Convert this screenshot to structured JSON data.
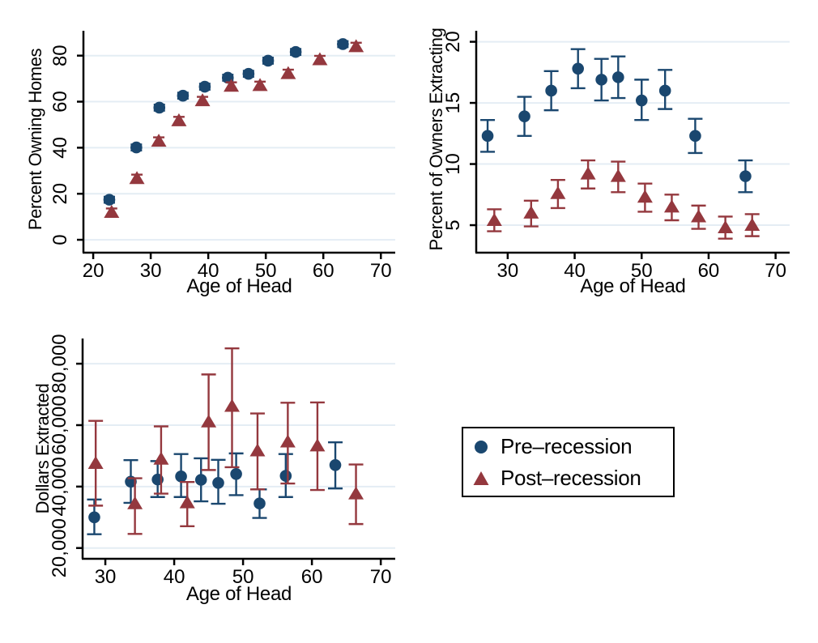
{
  "colors": {
    "pre": "#1a476f",
    "post": "#94383e",
    "grid": "#e4edf4",
    "axis": "#000000",
    "legend_border": "#000000",
    "background": "#ffffff"
  },
  "legend": {
    "items": [
      {
        "label": "Pre–recession",
        "marker": "circle",
        "series": "pre"
      },
      {
        "label": "Post–recession",
        "marker": "triangle",
        "series": "post"
      }
    ]
  },
  "chart_data": [
    {
      "id": "percent-owning-homes",
      "type": "scatter",
      "title": "",
      "xlabel": "Age of Head",
      "ylabel": "Percent Owning Homes",
      "xlim": [
        18.3,
        72.5
      ],
      "ylim": [
        -5.6,
        90.8
      ],
      "xticks": [
        20,
        30,
        40,
        50,
        60,
        70
      ],
      "xtick_labels": [
        "20",
        "30",
        "40",
        "50",
        "60",
        "70"
      ],
      "yticks": [
        0,
        20,
        40,
        60,
        80
      ],
      "ytick_labels": [
        "0",
        "20",
        "40",
        "60",
        "80"
      ],
      "grid": true,
      "point_format": [
        "age",
        "value",
        "ci_low",
        "ci_high"
      ],
      "series": [
        {
          "name": "Pre-recession",
          "marker": "circle",
          "color": "pre",
          "points": [
            [
              22.8,
              17.4,
              16.1,
              18.7
            ],
            [
              27.5,
              40.1,
              38.8,
              41.4
            ],
            [
              31.5,
              57.4,
              56.1,
              58.7
            ],
            [
              35.6,
              62.6,
              61.3,
              63.9
            ],
            [
              39.4,
              66.5,
              65.2,
              67.8
            ],
            [
              43.4,
              70.4,
              69.1,
              71.7
            ],
            [
              47.0,
              72.1,
              70.8,
              73.4
            ],
            [
              50.4,
              77.8,
              76.5,
              79.1
            ],
            [
              55.2,
              81.6,
              80.3,
              82.9
            ],
            [
              63.4,
              85.0,
              83.7,
              86.3
            ]
          ]
        },
        {
          "name": "Post-recession",
          "marker": "triangle",
          "color": "post",
          "points": [
            [
              23.2,
              12.0,
              10.4,
              13.6
            ],
            [
              27.6,
              26.7,
              25.1,
              28.3
            ],
            [
              31.4,
              42.9,
              41.3,
              44.5
            ],
            [
              34.9,
              51.8,
              50.2,
              53.4
            ],
            [
              39.0,
              60.5,
              58.9,
              62.1
            ],
            [
              44.0,
              66.8,
              65.2,
              68.4
            ],
            [
              49.0,
              67.1,
              65.5,
              68.7
            ],
            [
              53.9,
              72.3,
              70.7,
              73.9
            ],
            [
              59.4,
              78.3,
              76.7,
              79.9
            ],
            [
              65.7,
              84.0,
              82.4,
              85.6
            ]
          ]
        }
      ]
    },
    {
      "id": "percent-of-owners-extracting",
      "type": "scatter",
      "title": "",
      "xlabel": "Age of Head",
      "ylabel": "Percent of Owners Extracting",
      "xlim": [
        25.3,
        72.1
      ],
      "ylim": [
        2.75,
        20.9
      ],
      "xticks": [
        30,
        40,
        50,
        60,
        70
      ],
      "xtick_labels": [
        "30",
        "40",
        "50",
        "60",
        "70"
      ],
      "yticks": [
        5,
        10,
        15,
        20
      ],
      "ytick_labels": [
        "5",
        "10",
        "15",
        "20"
      ],
      "grid": true,
      "point_format": [
        "age",
        "value",
        "ci_low",
        "ci_high"
      ],
      "series": [
        {
          "name": "Pre-recession",
          "marker": "circle",
          "color": "pre",
          "points": [
            [
              27.0,
              12.3,
              11.0,
              13.6
            ],
            [
              32.5,
              13.9,
              12.3,
              15.5
            ],
            [
              36.5,
              16.0,
              14.4,
              17.6
            ],
            [
              40.5,
              17.8,
              16.2,
              19.4
            ],
            [
              44.0,
              16.9,
              15.2,
              18.6
            ],
            [
              46.5,
              17.1,
              15.4,
              18.8
            ],
            [
              50.0,
              15.2,
              13.6,
              16.9
            ],
            [
              53.5,
              16.0,
              14.5,
              17.7
            ],
            [
              58.0,
              12.3,
              10.9,
              13.7
            ],
            [
              65.5,
              9.0,
              7.7,
              10.3
            ]
          ]
        },
        {
          "name": "Post-recession",
          "marker": "triangle",
          "color": "post",
          "points": [
            [
              28.0,
              5.4,
              4.5,
              6.3
            ],
            [
              33.5,
              6.0,
              4.9,
              7.0
            ],
            [
              37.5,
              7.6,
              6.4,
              8.7
            ],
            [
              42.0,
              9.2,
              8.0,
              10.3
            ],
            [
              46.5,
              9.0,
              7.7,
              10.2
            ],
            [
              50.5,
              7.3,
              6.1,
              8.4
            ],
            [
              54.5,
              6.5,
              5.4,
              7.5
            ],
            [
              58.5,
              5.7,
              4.7,
              6.6
            ],
            [
              62.5,
              4.8,
              3.9,
              5.7
            ],
            [
              66.5,
              5.0,
              4.1,
              5.9
            ]
          ]
        }
      ]
    },
    {
      "id": "dollars-extracted",
      "type": "scatter",
      "title": "",
      "xlabel": "Age of Head",
      "ylabel": "Dollars Extracted",
      "xlim": [
        26.7,
        72.1
      ],
      "ylim": [
        16500,
        88200
      ],
      "xticks": [
        30,
        40,
        50,
        60,
        70
      ],
      "xtick_labels": [
        "30",
        "40",
        "50",
        "60",
        "70"
      ],
      "yticks": [
        20000,
        40000,
        60000,
        80000
      ],
      "ytick_labels": [
        "20,000",
        "40,000",
        "60,000",
        "80,000"
      ],
      "grid": true,
      "point_format": [
        "age",
        "value",
        "ci_low",
        "ci_high"
      ],
      "series": [
        {
          "name": "Pre-recession",
          "marker": "circle",
          "color": "pre",
          "points": [
            [
              28.4,
              30000,
              24500,
              35800
            ],
            [
              33.7,
              41600,
              34700,
              48600
            ],
            [
              37.6,
              42300,
              36600,
              48300
            ],
            [
              41.0,
              43300,
              36600,
              50600
            ],
            [
              43.9,
              42200,
              35200,
              49200
            ],
            [
              46.4,
              41200,
              34400,
              48700
            ],
            [
              49.0,
              44100,
              37200,
              50800
            ],
            [
              52.4,
              34500,
              29800,
              39100
            ],
            [
              56.2,
              43500,
              36600,
              50600
            ],
            [
              63.4,
              47000,
              39400,
              54400
            ]
          ]
        },
        {
          "name": "Post-recession",
          "marker": "triangle",
          "color": "post",
          "points": [
            [
              28.6,
              47600,
              33800,
              61400
            ],
            [
              34.3,
              34500,
              24600,
              42700
            ],
            [
              38.1,
              49000,
              37700,
              59600
            ],
            [
              41.9,
              34800,
              27100,
              41500
            ],
            [
              45.0,
              61100,
              45400,
              76500
            ],
            [
              48.4,
              66200,
              46300,
              85000
            ],
            [
              52.1,
              51700,
              39100,
              63800
            ],
            [
              56.5,
              54600,
              41000,
              67300
            ],
            [
              60.8,
              53300,
              38900,
              67400
            ],
            [
              66.4,
              37700,
              27800,
              47200
            ]
          ]
        }
      ]
    }
  ]
}
